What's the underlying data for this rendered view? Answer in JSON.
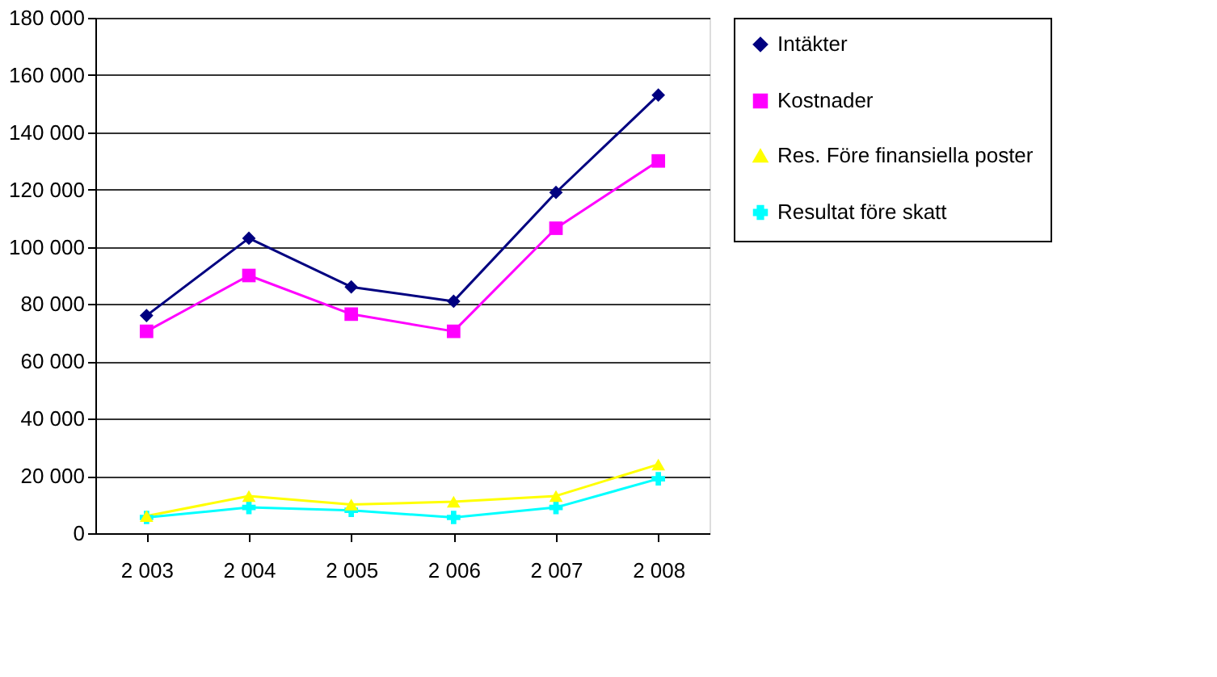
{
  "chart_data": {
    "type": "line",
    "categories": [
      "2 003",
      "2 004",
      "2 005",
      "2 006",
      "2 007",
      "2 008"
    ],
    "series": [
      {
        "name": "Intäkter",
        "color": "#000080",
        "marker": "diamond",
        "values": [
          76000,
          103000,
          86000,
          81000,
          119000,
          153000
        ]
      },
      {
        "name": "Kostnader",
        "color": "#ff00ff",
        "marker": "square",
        "values": [
          70500,
          90000,
          76500,
          70500,
          106500,
          130000
        ]
      },
      {
        "name": "Res. Före finansiella poster",
        "color": "#ffff00",
        "marker": "triangle",
        "values": [
          6000,
          13000,
          10000,
          11000,
          13000,
          24000
        ]
      },
      {
        "name": "Resultat före skatt",
        "color": "#00ffff",
        "marker": "cross",
        "values": [
          5500,
          9000,
          8000,
          5500,
          9000,
          19000
        ]
      }
    ],
    "ylim": [
      0,
      180000
    ],
    "yticks": [
      {
        "value": 0,
        "label": "0"
      },
      {
        "value": 20000,
        "label": "20 000"
      },
      {
        "value": 40000,
        "label": "40 000"
      },
      {
        "value": 60000,
        "label": "60 000"
      },
      {
        "value": 80000,
        "label": "80 000"
      },
      {
        "value": 100000,
        "label": "100 000"
      },
      {
        "value": 120000,
        "label": "120 000"
      },
      {
        "value": 140000,
        "label": "140 000"
      },
      {
        "value": 160000,
        "label": "160 000"
      },
      {
        "value": 180000,
        "label": "180 000"
      }
    ],
    "grid": "y",
    "legend": "right",
    "line_style": "solid"
  }
}
